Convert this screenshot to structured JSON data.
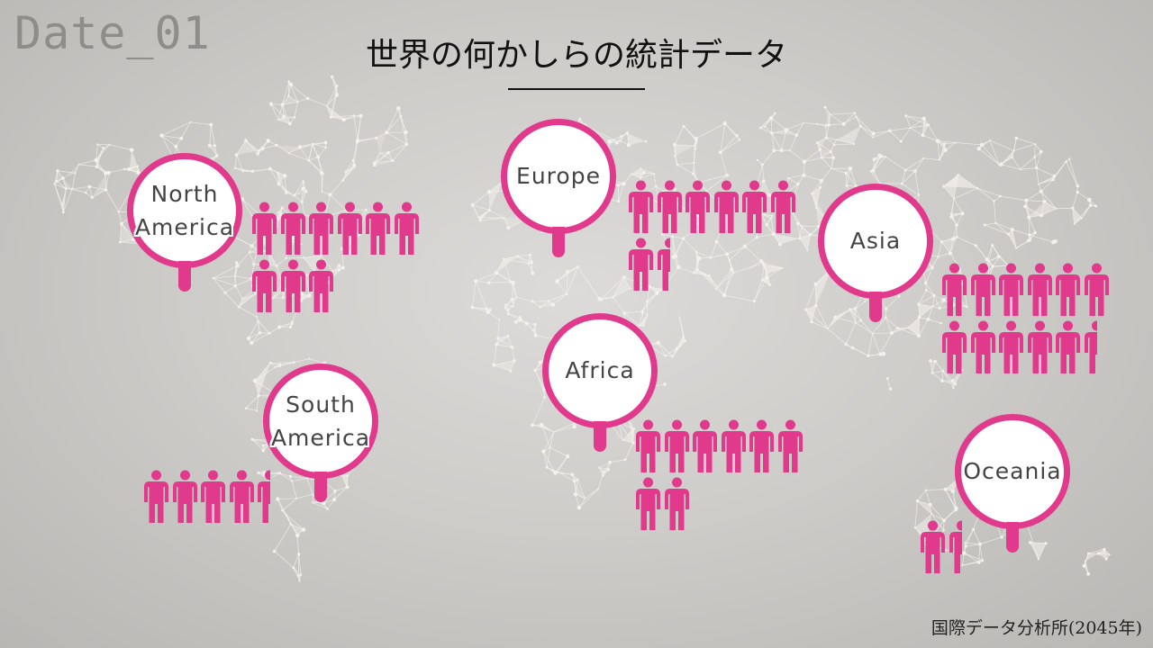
{
  "header": {
    "date_label": "Date_01",
    "title": "世界の何かしらの統計データ"
  },
  "footer": {
    "source": "国際データ分析所(2045年)"
  },
  "colors": {
    "accent": "#e1398b",
    "background": "#cfcdca",
    "network": "#f4f1ec"
  },
  "icons": {
    "marker": "map-pin-icon",
    "person": "person-icon"
  },
  "regions": [
    {
      "id": "north-america",
      "label": "North America",
      "lines": [
        "North",
        "America"
      ],
      "people": 9
    },
    {
      "id": "europe",
      "label": "Europe",
      "lines": [
        "Europe"
      ],
      "people": 7.5
    },
    {
      "id": "asia",
      "label": "Asia",
      "lines": [
        "Asia"
      ],
      "people": 11.5
    },
    {
      "id": "south-america",
      "label": "South America",
      "lines": [
        "South",
        "America"
      ],
      "people": 4.5
    },
    {
      "id": "africa",
      "label": "Africa",
      "lines": [
        "Africa"
      ],
      "people": 8
    },
    {
      "id": "oceania",
      "label": "Oceania",
      "lines": [
        "Oceania"
      ],
      "people": 1.5
    }
  ]
}
